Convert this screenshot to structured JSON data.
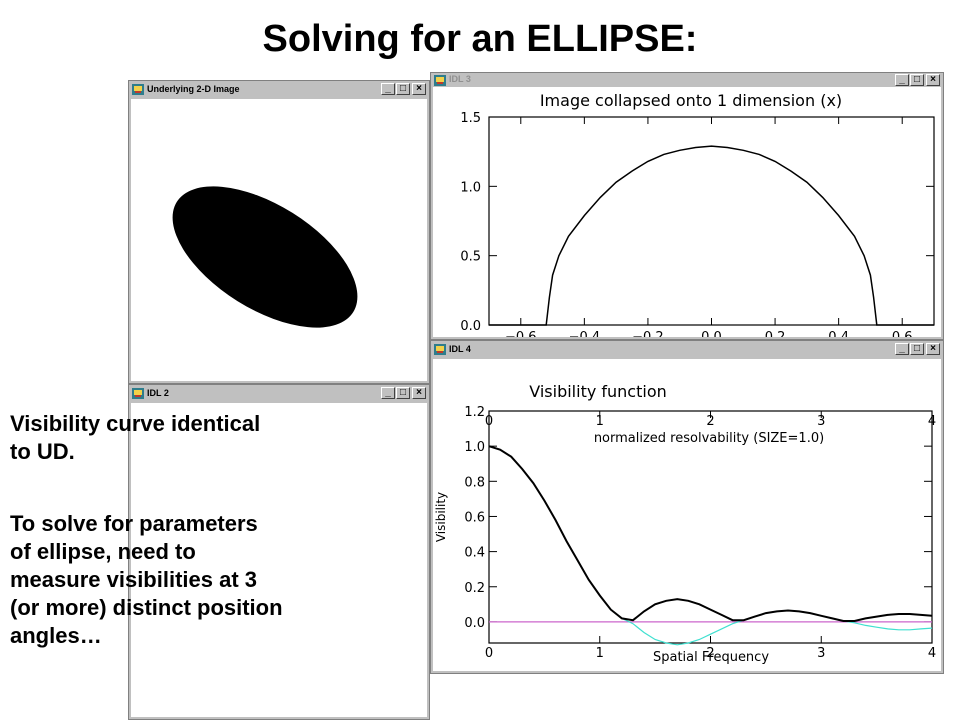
{
  "slide": {
    "title": "Solving for an ELLIPSE:",
    "text1_line1": "Visibility curve identical",
    "text1_line2": "to UD.",
    "text2_line1": "To solve for parameters",
    "text2_line2": "of ellipse, need to",
    "text2_line3": "measure visibilities at 3",
    "text2_line4": "(or more) distinct position",
    "text2_line5": "angles…"
  },
  "windows": {
    "image": {
      "title": "Underlying 2-D Image"
    },
    "collapse": {
      "title": "IDL 3"
    },
    "idl2": {
      "title": "IDL 2"
    },
    "vis": {
      "title": "IDL 4"
    }
  },
  "window_controls": {
    "minimize": "_",
    "maximize": "□",
    "close": "×"
  },
  "chart_data": [
    {
      "type": "line",
      "title": "Image collapsed onto 1 dimension (x)",
      "xlabel": "",
      "ylabel": "",
      "xlim": [
        -0.7,
        0.7
      ],
      "ylim": [
        0,
        1.5
      ],
      "x_ticks": [
        "−0.6",
        "−0.4",
        "−0.2",
        "0.0",
        "0.2",
        "0.4",
        "0.6"
      ],
      "x_tick_values": [
        -0.6,
        -0.4,
        -0.2,
        0.0,
        0.2,
        0.4,
        0.6
      ],
      "y_ticks": [
        "0.0",
        "0.5",
        "1.0",
        "1.5"
      ],
      "y_tick_values": [
        0,
        0.5,
        1.0,
        1.5
      ],
      "series": [
        {
          "x": [
            -0.7,
            -0.52,
            -0.51,
            -0.5,
            -0.48,
            -0.45,
            -0.4,
            -0.35,
            -0.3,
            -0.25,
            -0.2,
            -0.15,
            -0.1,
            -0.05,
            0.0,
            0.05,
            0.1,
            0.15,
            0.2,
            0.25,
            0.3,
            0.35,
            0.4,
            0.45,
            0.48,
            0.5,
            0.51,
            0.52,
            0.7
          ],
          "y": [
            0,
            0,
            0.2,
            0.36,
            0.5,
            0.64,
            0.79,
            0.92,
            1.03,
            1.11,
            1.18,
            1.23,
            1.26,
            1.28,
            1.29,
            1.28,
            1.26,
            1.23,
            1.18,
            1.11,
            1.03,
            0.92,
            0.79,
            0.64,
            0.5,
            0.36,
            0.2,
            0,
            0
          ]
        }
      ]
    },
    {
      "type": "line",
      "title": "Visibility function",
      "subtitle": "normalized resolvability (SIZE=1.0)",
      "xlabel": "Spatial Frequency",
      "ylabel": "Visibility",
      "xlim": [
        0,
        4
      ],
      "ylim": [
        -0.12,
        1.2
      ],
      "x_ticks": [
        "0",
        "1",
        "2",
        "3",
        "4"
      ],
      "x_tick_values": [
        0,
        1,
        2,
        3,
        4
      ],
      "top_ticks": [
        "0",
        "1",
        "2",
        "3",
        "4"
      ],
      "y_ticks": [
        "0.0",
        "0.2",
        "0.4",
        "0.6",
        "0.8",
        "1.0",
        "1.2"
      ],
      "y_tick_values": [
        0,
        0.2,
        0.4,
        0.6,
        0.8,
        1.0,
        1.2
      ],
      "series": [
        {
          "color": "#000000",
          "x": [
            0,
            0.1,
            0.2,
            0.3,
            0.4,
            0.5,
            0.6,
            0.7,
            0.8,
            0.9,
            1.0,
            1.1,
            1.2,
            1.3,
            1.4,
            1.5,
            1.6,
            1.7,
            1.8,
            1.9,
            2.0,
            2.1,
            2.2,
            2.3,
            2.4,
            2.5,
            2.6,
            2.7,
            2.8,
            2.9,
            3.0,
            3.1,
            3.2,
            3.3,
            3.4,
            3.5,
            3.6,
            3.7,
            3.8,
            3.9,
            4.0
          ],
          "y": [
            1.0,
            0.98,
            0.94,
            0.87,
            0.79,
            0.69,
            0.58,
            0.46,
            0.35,
            0.24,
            0.15,
            0.07,
            0.02,
            0.01,
            0.06,
            0.1,
            0.12,
            0.13,
            0.12,
            0.1,
            0.07,
            0.04,
            0.01,
            0.01,
            0.03,
            0.05,
            0.06,
            0.065,
            0.06,
            0.05,
            0.035,
            0.02,
            0.005,
            0.005,
            0.02,
            0.03,
            0.04,
            0.045,
            0.045,
            0.04,
            0.035
          ]
        },
        {
          "color": "#40e0d0",
          "x": [
            0,
            0.1,
            0.2,
            0.3,
            0.4,
            0.5,
            0.6,
            0.7,
            0.8,
            0.9,
            1.0,
            1.1,
            1.2,
            1.3,
            1.4,
            1.5,
            1.6,
            1.7,
            1.8,
            1.9,
            2.0,
            2.1,
            2.2,
            2.3,
            2.4,
            2.5,
            2.6,
            2.7,
            2.8,
            2.9,
            3.0,
            3.1,
            3.2,
            3.3,
            3.4,
            3.5,
            3.6,
            3.7,
            3.8,
            3.9,
            4.0
          ],
          "y": [
            1.0,
            0.98,
            0.94,
            0.87,
            0.79,
            0.69,
            0.58,
            0.46,
            0.35,
            0.24,
            0.15,
            0.07,
            0.02,
            -0.01,
            -0.06,
            -0.1,
            -0.12,
            -0.13,
            -0.12,
            -0.1,
            -0.07,
            -0.04,
            -0.01,
            0.01,
            0.03,
            0.05,
            0.06,
            0.065,
            0.06,
            0.05,
            0.035,
            0.02,
            0.005,
            -0.005,
            -0.02,
            -0.03,
            -0.04,
            -0.045,
            -0.045,
            -0.04,
            -0.035
          ]
        },
        {
          "color": "#cc66cc",
          "x": [
            0,
            4
          ],
          "y": [
            0,
            0
          ]
        }
      ]
    }
  ]
}
